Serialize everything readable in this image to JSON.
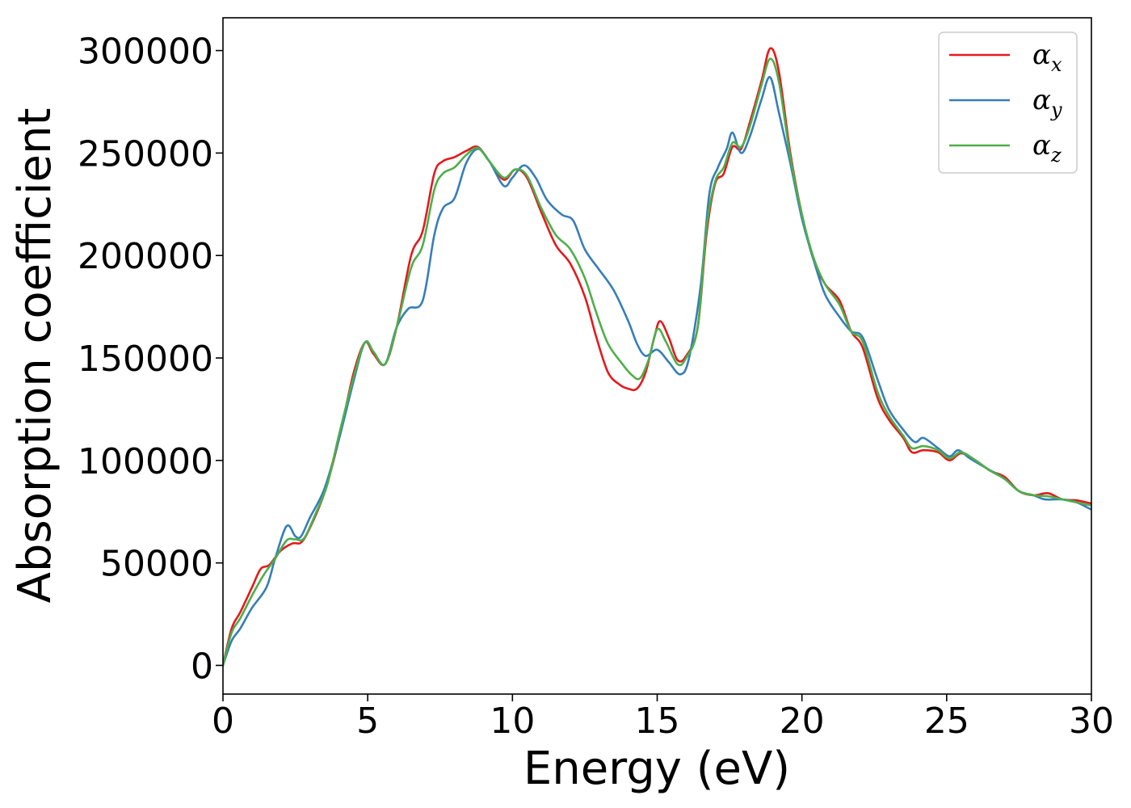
{
  "chart_data": {
    "type": "line",
    "xlabel": "Energy (eV)",
    "ylabel": "Absorption coefficient",
    "xlim": [
      0,
      30
    ],
    "ylim": [
      -14000,
      316000
    ],
    "xticks": [
      0,
      5,
      10,
      15,
      20,
      25,
      30
    ],
    "yticks": [
      0,
      50000,
      100000,
      150000,
      200000,
      250000,
      300000
    ],
    "grid": false,
    "legend_position": "top-right",
    "series": [
      {
        "name": "α_x",
        "name_base": "α",
        "name_sub": "x",
        "color": "#e41a1c",
        "points": [
          [
            0,
            0
          ],
          [
            0.3,
            18000
          ],
          [
            0.6,
            26000
          ],
          [
            1.0,
            38000
          ],
          [
            1.3,
            47000
          ],
          [
            1.6,
            49000
          ],
          [
            2.0,
            56000
          ],
          [
            2.4,
            59500
          ],
          [
            2.7,
            60000
          ],
          [
            3.0,
            67000
          ],
          [
            3.5,
            84000
          ],
          [
            4.0,
            110000
          ],
          [
            4.5,
            142000
          ],
          [
            4.9,
            157500
          ],
          [
            5.2,
            152000
          ],
          [
            5.6,
            147000
          ],
          [
            6.0,
            165000
          ],
          [
            6.5,
            200000
          ],
          [
            6.9,
            212000
          ],
          [
            7.3,
            240000
          ],
          [
            7.6,
            246000
          ],
          [
            8.0,
            248000
          ],
          [
            8.4,
            251000
          ],
          [
            8.8,
            253000
          ],
          [
            9.2,
            246000
          ],
          [
            9.7,
            237000
          ],
          [
            10.1,
            242000
          ],
          [
            10.5,
            238000
          ],
          [
            11.0,
            221000
          ],
          [
            11.5,
            205000
          ],
          [
            12.0,
            196000
          ],
          [
            12.5,
            180000
          ],
          [
            12.9,
            160000
          ],
          [
            13.3,
            143000
          ],
          [
            13.7,
            137000
          ],
          [
            14.0,
            135000
          ],
          [
            14.3,
            135000
          ],
          [
            14.6,
            143000
          ],
          [
            14.9,
            160000
          ],
          [
            15.1,
            168000
          ],
          [
            15.4,
            160000
          ],
          [
            15.7,
            149000
          ],
          [
            16.0,
            151000
          ],
          [
            16.4,
            165000
          ],
          [
            16.7,
            210000
          ],
          [
            17.0,
            235000
          ],
          [
            17.3,
            240000
          ],
          [
            17.6,
            253000
          ],
          [
            17.9,
            252000
          ],
          [
            18.2,
            265000
          ],
          [
            18.6,
            285000
          ],
          [
            18.9,
            301000
          ],
          [
            19.2,
            290000
          ],
          [
            19.6,
            250000
          ],
          [
            20.0,
            220000
          ],
          [
            20.4,
            198000
          ],
          [
            20.8,
            186000
          ],
          [
            21.3,
            178000
          ],
          [
            21.7,
            163000
          ],
          [
            22.1,
            155000
          ],
          [
            22.6,
            131000
          ],
          [
            23.0,
            120000
          ],
          [
            23.5,
            111000
          ],
          [
            23.8,
            104000
          ],
          [
            24.2,
            105000
          ],
          [
            24.7,
            104000
          ],
          [
            25.1,
            100000
          ],
          [
            25.5,
            103500
          ],
          [
            26.0,
            100000
          ],
          [
            26.5,
            95000
          ],
          [
            27.0,
            92000
          ],
          [
            27.5,
            85000
          ],
          [
            28.0,
            83000
          ],
          [
            28.5,
            84000
          ],
          [
            29.0,
            81000
          ],
          [
            29.5,
            80500
          ],
          [
            30.0,
            79000
          ]
        ]
      },
      {
        "name": "α_y",
        "name_base": "α",
        "name_sub": "y",
        "color": "#377eb8",
        "points": [
          [
            0,
            0
          ],
          [
            0.3,
            12000
          ],
          [
            0.6,
            18000
          ],
          [
            1.0,
            28000
          ],
          [
            1.5,
            38000
          ],
          [
            1.8,
            52000
          ],
          [
            2.2,
            68000
          ],
          [
            2.5,
            63000
          ],
          [
            2.7,
            63000
          ],
          [
            3.0,
            72000
          ],
          [
            3.5,
            86000
          ],
          [
            4.0,
            110000
          ],
          [
            4.5,
            138000
          ],
          [
            4.9,
            157500
          ],
          [
            5.2,
            153000
          ],
          [
            5.6,
            147000
          ],
          [
            6.0,
            165000
          ],
          [
            6.4,
            174000
          ],
          [
            6.9,
            178000
          ],
          [
            7.3,
            210000
          ],
          [
            7.6,
            223000
          ],
          [
            8.0,
            228000
          ],
          [
            8.4,
            245000
          ],
          [
            8.8,
            252000
          ],
          [
            9.2,
            246000
          ],
          [
            9.7,
            234000
          ],
          [
            10.0,
            238000
          ],
          [
            10.4,
            244000
          ],
          [
            10.8,
            238000
          ],
          [
            11.2,
            227000
          ],
          [
            11.7,
            220000
          ],
          [
            12.1,
            217000
          ],
          [
            12.5,
            203000
          ],
          [
            13.0,
            193000
          ],
          [
            13.5,
            183000
          ],
          [
            14.0,
            168000
          ],
          [
            14.3,
            157000
          ],
          [
            14.6,
            151000
          ],
          [
            15.0,
            154000
          ],
          [
            15.4,
            148000
          ],
          [
            15.8,
            142000
          ],
          [
            16.1,
            150000
          ],
          [
            16.5,
            185000
          ],
          [
            16.8,
            230000
          ],
          [
            17.1,
            243000
          ],
          [
            17.4,
            252000
          ],
          [
            17.6,
            260000
          ],
          [
            17.9,
            250000
          ],
          [
            18.2,
            258000
          ],
          [
            18.6,
            276000
          ],
          [
            18.9,
            287000
          ],
          [
            19.2,
            270000
          ],
          [
            19.6,
            245000
          ],
          [
            20.0,
            218000
          ],
          [
            20.4,
            198000
          ],
          [
            20.8,
            181000
          ],
          [
            21.3,
            170000
          ],
          [
            21.7,
            163000
          ],
          [
            22.1,
            160000
          ],
          [
            22.6,
            140000
          ],
          [
            23.0,
            125000
          ],
          [
            23.5,
            115000
          ],
          [
            23.9,
            109000
          ],
          [
            24.2,
            111000
          ],
          [
            24.7,
            106000
          ],
          [
            25.1,
            102000
          ],
          [
            25.4,
            105000
          ],
          [
            25.8,
            101000
          ],
          [
            26.4,
            96000
          ],
          [
            27.0,
            91000
          ],
          [
            27.5,
            85000
          ],
          [
            28.0,
            83000
          ],
          [
            28.4,
            81000
          ],
          [
            29.0,
            81000
          ],
          [
            29.5,
            79500
          ],
          [
            30.0,
            76000
          ]
        ]
      },
      {
        "name": "α_z",
        "name_base": "α",
        "name_sub": "z",
        "color": "#4daf4a",
        "points": [
          [
            0,
            0
          ],
          [
            0.3,
            16000
          ],
          [
            0.6,
            23000
          ],
          [
            1.0,
            34000
          ],
          [
            1.4,
            44000
          ],
          [
            1.8,
            52000
          ],
          [
            2.2,
            61000
          ],
          [
            2.5,
            61500
          ],
          [
            2.8,
            62000
          ],
          [
            3.2,
            74000
          ],
          [
            3.6,
            88000
          ],
          [
            4.0,
            112000
          ],
          [
            4.5,
            140000
          ],
          [
            4.9,
            157500
          ],
          [
            5.2,
            153000
          ],
          [
            5.6,
            147000
          ],
          [
            6.0,
            165000
          ],
          [
            6.5,
            194000
          ],
          [
            6.9,
            205000
          ],
          [
            7.3,
            232000
          ],
          [
            7.6,
            240000
          ],
          [
            8.0,
            243000
          ],
          [
            8.4,
            249000
          ],
          [
            8.8,
            252500
          ],
          [
            9.2,
            246000
          ],
          [
            9.7,
            238000
          ],
          [
            10.1,
            242000
          ],
          [
            10.5,
            239000
          ],
          [
            11.0,
            223000
          ],
          [
            11.5,
            210000
          ],
          [
            12.0,
            203000
          ],
          [
            12.5,
            189000
          ],
          [
            12.9,
            172000
          ],
          [
            13.3,
            157000
          ],
          [
            13.8,
            147000
          ],
          [
            14.1,
            142000
          ],
          [
            14.4,
            140000
          ],
          [
            14.7,
            149000
          ],
          [
            15.0,
            164000
          ],
          [
            15.3,
            158000
          ],
          [
            15.7,
            147000
          ],
          [
            16.0,
            150000
          ],
          [
            16.4,
            165000
          ],
          [
            16.7,
            213000
          ],
          [
            17.0,
            236000
          ],
          [
            17.3,
            243000
          ],
          [
            17.6,
            255000
          ],
          [
            17.9,
            253000
          ],
          [
            18.2,
            263000
          ],
          [
            18.6,
            283000
          ],
          [
            18.9,
            296000
          ],
          [
            19.2,
            285000
          ],
          [
            19.6,
            248000
          ],
          [
            20.0,
            220000
          ],
          [
            20.4,
            199000
          ],
          [
            20.8,
            186000
          ],
          [
            21.3,
            176000
          ],
          [
            21.7,
            163000
          ],
          [
            22.1,
            158000
          ],
          [
            22.6,
            134000
          ],
          [
            23.0,
            122000
          ],
          [
            23.5,
            112000
          ],
          [
            23.8,
            106000
          ],
          [
            24.2,
            107000
          ],
          [
            24.7,
            105000
          ],
          [
            25.1,
            101000
          ],
          [
            25.5,
            104000
          ],
          [
            26.0,
            100000
          ],
          [
            26.5,
            95000
          ],
          [
            27.0,
            91000
          ],
          [
            27.5,
            85000
          ],
          [
            28.0,
            83000
          ],
          [
            28.5,
            82500
          ],
          [
            29.0,
            81000
          ],
          [
            29.5,
            79500
          ],
          [
            30.0,
            78000
          ]
        ]
      }
    ]
  }
}
